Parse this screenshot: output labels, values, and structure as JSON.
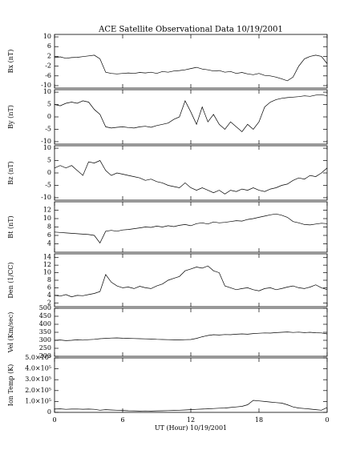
{
  "chart_data": {
    "type": "line",
    "title": "ACE Satellite Observational Data   10/19/2001",
    "x_label": "UT (Hour)  10/19/2001",
    "xlim": [
      0,
      24
    ],
    "xticks": [
      0,
      6,
      12,
      18,
      {
        "value": 24,
        "label": "0"
      }
    ],
    "color": "#000000",
    "x": [
      0,
      0.5,
      1,
      1.5,
      2,
      2.5,
      3,
      3.5,
      4,
      4.5,
      5,
      5.5,
      6,
      6.5,
      7,
      7.5,
      8,
      8.5,
      9,
      9.5,
      10,
      10.5,
      11,
      11.5,
      12,
      12.5,
      13,
      13.5,
      14,
      14.5,
      15,
      15.5,
      16,
      16.5,
      17,
      17.5,
      18,
      18.5,
      19,
      19.5,
      20,
      20.5,
      21,
      21.5,
      22,
      22.5,
      23,
      23.5,
      24
    ],
    "panels": [
      {
        "ylabel": "Bx (nT)",
        "ylim": [
          -11,
          11
        ],
        "yticks": [
          10,
          6,
          2,
          -2,
          -6,
          -10
        ],
        "values": [
          1.5,
          1.8,
          1.2,
          1.5,
          1.6,
          1.9,
          2.2,
          2.5,
          1.0,
          -4.5,
          -5.0,
          -5.2,
          -5.0,
          -4.8,
          -5.0,
          -4.6,
          -4.8,
          -4.5,
          -5.0,
          -4.2,
          -4.5,
          -4.0,
          -3.8,
          -3.5,
          -3.0,
          -2.5,
          -3.2,
          -3.5,
          -4.0,
          -3.8,
          -4.5,
          -4.2,
          -5.0,
          -4.6,
          -5.2,
          -5.5,
          -5.0,
          -5.8,
          -6.0,
          -6.5,
          -7.2,
          -8.0,
          -6.5,
          -2.0,
          1.0,
          2.0,
          2.5,
          2.0,
          -1.0
        ]
      },
      {
        "ylabel": "By (nT)",
        "ylim": [
          -11,
          11
        ],
        "yticks": [
          10,
          5,
          0,
          -5,
          -10
        ],
        "values": [
          5,
          4.5,
          5.5,
          6,
          5.5,
          6.5,
          6,
          3,
          1,
          -4,
          -4.5,
          -4.2,
          -4,
          -4.3,
          -4.5,
          -4,
          -3.8,
          -4.2,
          -3.5,
          -3,
          -2.5,
          -1,
          0,
          6.5,
          2,
          -3,
          4,
          -2,
          1,
          -3,
          -5,
          -2,
          -4,
          -6,
          -3,
          -5,
          -2,
          4,
          6,
          7,
          7.5,
          7.8,
          8,
          8.2,
          8.5,
          8.3,
          8.8,
          9,
          8.5
        ]
      },
      {
        "ylabel": "Bz (nT)",
        "ylim": [
          -11,
          11
        ],
        "yticks": [
          10,
          5,
          0,
          -5,
          -10
        ],
        "values": [
          2,
          3,
          2,
          3,
          1,
          -1,
          4.5,
          4,
          5,
          1,
          -1,
          0,
          -0.5,
          -1,
          -1.5,
          -2,
          -3,
          -2.5,
          -3.5,
          -4,
          -5,
          -5.5,
          -6,
          -4,
          -6,
          -7,
          -6,
          -7,
          -8,
          -7,
          -8.5,
          -7,
          -7.5,
          -6.5,
          -7,
          -6,
          -7,
          -7.5,
          -6.5,
          -6,
          -5,
          -4.5,
          -3,
          -2,
          -2.5,
          -1,
          -1.5,
          0,
          2
        ]
      },
      {
        "ylabel": "Bt (nT)",
        "ylim": [
          2,
          14
        ],
        "yticks": [
          12,
          10,
          8,
          6,
          4
        ],
        "values": [
          6.8,
          6.7,
          6.6,
          6.5,
          6.4,
          6.3,
          6.2,
          6.0,
          4.2,
          7.0,
          7.2,
          7.0,
          7.3,
          7.4,
          7.6,
          7.8,
          8.0,
          7.9,
          8.2,
          8.0,
          8.3,
          8.1,
          8.4,
          8.6,
          8.3,
          8.8,
          9.0,
          8.7,
          9.2,
          9.0,
          9.1,
          9.3,
          9.5,
          9.4,
          9.8,
          10.0,
          10.3,
          10.6,
          10.9,
          11.1,
          10.8,
          10.3,
          9.3,
          9.0,
          8.6,
          8.5,
          8.7,
          8.9,
          8.8
        ]
      },
      {
        "ylabel": "Den (1/CC)",
        "ylim": [
          1,
          15
        ],
        "yticks": [
          14,
          12,
          10,
          8,
          6,
          4,
          2
        ],
        "values": [
          4.0,
          3.8,
          4.2,
          3.6,
          4.0,
          3.9,
          4.2,
          4.5,
          5.0,
          9.5,
          7.5,
          6.5,
          6.0,
          6.2,
          5.8,
          6.4,
          6.0,
          5.8,
          6.5,
          7.0,
          8.0,
          8.5,
          9.0,
          10.5,
          11.0,
          11.5,
          11.2,
          11.8,
          10.5,
          10.0,
          6.5,
          6.0,
          5.5,
          5.8,
          6.0,
          5.5,
          5.2,
          5.8,
          6.0,
          5.5,
          5.8,
          6.2,
          6.5,
          6.0,
          5.8,
          6.2,
          6.8,
          6.0,
          5.5
        ]
      },
      {
        "ylabel": "Vel (Km/sec)",
        "ylim": [
          200,
          500
        ],
        "yticks": [
          500,
          450,
          400,
          350,
          300,
          250,
          200
        ],
        "values": [
          300,
          302,
          298,
          300,
          303,
          301,
          304,
          306,
          310,
          312,
          314,
          315,
          313,
          312,
          311,
          310,
          309,
          308,
          306,
          305,
          304,
          303,
          302,
          304,
          305,
          312,
          322,
          330,
          335,
          333,
          336,
          335,
          338,
          340,
          338,
          342,
          344,
          346,
          345,
          348,
          350,
          352,
          349,
          351,
          348,
          350,
          347,
          346,
          340
        ]
      },
      {
        "ylabel": "Ion Temp (K)",
        "ylim": [
          0,
          500000
        ],
        "yticks": [
          {
            "value": 500000,
            "label": "5.0×10⁵"
          },
          {
            "value": 400000,
            "label": "4.0×10⁵"
          },
          {
            "value": 300000,
            "label": "3.0×10⁵"
          },
          {
            "value": 200000,
            "label": "2.0×10⁵"
          },
          {
            "value": 100000,
            "label": "1.0×10⁵"
          },
          0
        ],
        "values": [
          30000,
          32000,
          28000,
          30000,
          31000,
          29000,
          30000,
          28000,
          20000,
          25000,
          22000,
          20000,
          18000,
          15000,
          14000,
          12000,
          13000,
          12000,
          14000,
          15000,
          16000,
          18000,
          20000,
          22000,
          25000,
          28000,
          30000,
          32000,
          35000,
          38000,
          40000,
          45000,
          50000,
          55000,
          70000,
          110000,
          105000,
          100000,
          95000,
          90000,
          85000,
          70000,
          50000,
          40000,
          35000,
          30000,
          25000,
          20000,
          45000
        ]
      }
    ]
  }
}
